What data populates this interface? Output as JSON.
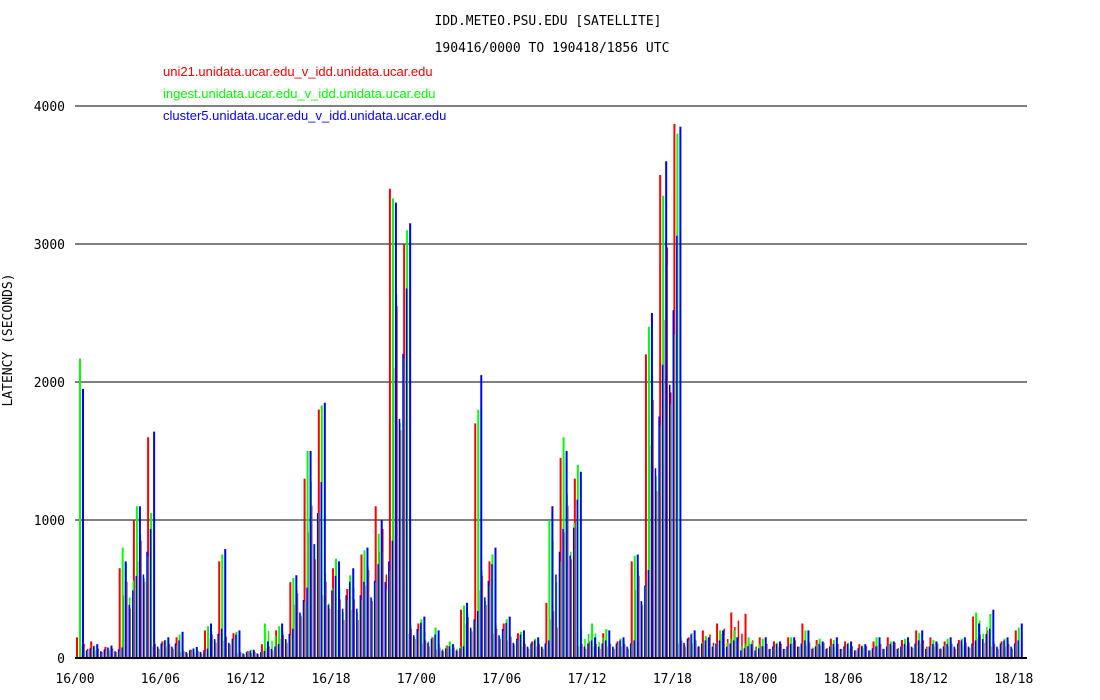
{
  "chart_data": {
    "type": "bar",
    "title": "IDD.METEO.PSU.EDU [SATELLITE]",
    "subtitle": "190416/0000 TO 190418/1856 UTC",
    "xlabel": "",
    "ylabel": "LATENCY (SECONDS)",
    "ylim": [
      0,
      4000
    ],
    "yticks": [
      "0",
      "1000",
      "2000",
      "3000",
      "4000"
    ],
    "xlim_hours": [
      0,
      66.93
    ],
    "xticks": [
      "16/00",
      "16/06",
      "16/12",
      "16/18",
      "17/00",
      "17/06",
      "17/12",
      "17/18",
      "18/00",
      "18/06",
      "18/12",
      "18/18"
    ],
    "grid": "horizontal",
    "legend": "top-left",
    "x_hours": [
      0,
      1,
      2,
      3,
      4,
      5,
      6,
      7,
      8,
      9,
      10,
      11,
      12,
      13,
      14,
      15,
      16,
      17,
      18,
      19,
      20,
      21,
      22,
      23,
      24,
      25,
      26,
      27,
      28,
      29,
      30,
      31,
      32,
      33,
      34,
      35,
      36,
      37,
      38,
      39,
      40,
      41,
      42,
      43,
      44,
      45,
      46,
      47,
      48,
      49,
      50,
      51,
      52,
      53,
      54,
      55,
      56,
      57,
      58,
      59,
      60,
      61,
      62,
      63,
      64,
      65,
      66
    ],
    "series": [
      {
        "name": "uni21.unidata.ucar.edu_v_idd.unidata.ucar.edu",
        "color": "#ff0000",
        "values": [
          150,
          120,
          80,
          650,
          1000,
          1600,
          120,
          150,
          60,
          200,
          700,
          180,
          50,
          100,
          200,
          550,
          1300,
          1800,
          650,
          500,
          750,
          1100,
          3400,
          3000,
          250,
          150,
          90,
          350,
          1700,
          700,
          250,
          180,
          120,
          400,
          1450,
          1300,
          120,
          180,
          120,
          700,
          2200,
          3500,
          3870,
          150,
          200,
          250,
          330,
          320,
          150,
          120,
          150,
          250,
          130,
          140,
          120,
          100,
          120,
          150,
          130,
          200,
          150,
          120,
          130,
          300,
          200,
          120,
          200
        ]
      },
      {
        "name": "ingest.unidata.ucar.edu_v_idd.unidata.ucar.edu",
        "color": "#00ff00",
        "values": [
          2170,
          90,
          70,
          800,
          1100,
          1050,
          130,
          170,
          70,
          230,
          750,
          190,
          60,
          250,
          230,
          580,
          1500,
          1830,
          720,
          600,
          780,
          900,
          3330,
          3100,
          280,
          220,
          120,
          380,
          1800,
          750,
          280,
          190,
          140,
          1000,
          1600,
          1400,
          250,
          210,
          140,
          740,
          2400,
          3350,
          3800,
          180,
          160,
          200,
          200,
          150,
          140,
          110,
          150,
          200,
          140,
          130,
          110,
          90,
          150,
          120,
          140,
          180,
          130,
          140,
          140,
          330,
          320,
          140,
          220
        ]
      },
      {
        "name": "cluster5.unidata.ucar.edu_v_idd.unidata.ucar.edu",
        "color": "#0000ff",
        "values": [
          1950,
          100,
          90,
          700,
          1100,
          1640,
          150,
          190,
          80,
          250,
          790,
          200,
          60,
          120,
          250,
          600,
          1500,
          1850,
          700,
          650,
          800,
          1000,
          3300,
          3150,
          300,
          200,
          100,
          400,
          2050,
          800,
          300,
          200,
          150,
          1100,
          1500,
          1350,
          150,
          200,
          150,
          750,
          2500,
          3600,
          3850,
          200,
          150,
          200,
          150,
          100,
          150,
          120,
          150,
          200,
          120,
          150,
          120,
          100,
          150,
          120,
          150,
          200,
          120,
          150,
          150,
          250,
          350,
          150,
          250
        ]
      }
    ]
  }
}
